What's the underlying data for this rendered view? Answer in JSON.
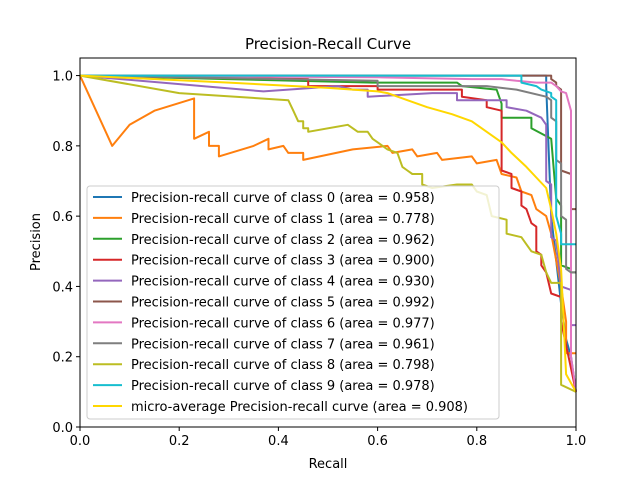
{
  "chart_data": {
    "type": "line",
    "title": "Precision-Recall Curve",
    "xlabel": "Recall",
    "ylabel": "Precision",
    "xlim": [
      0.0,
      1.0
    ],
    "ylim": [
      0.0,
      1.05
    ],
    "xticks": [
      "0.0",
      "0.2",
      "0.4",
      "0.6",
      "0.8",
      "1.0"
    ],
    "yticks": [
      "0.0",
      "0.2",
      "0.4",
      "0.6",
      "0.8",
      "1.0"
    ],
    "grid": false,
    "legend_position": "lower-left",
    "series": [
      {
        "name": "Precision-recall curve of class 0 (area = 0.958)",
        "color": "#1f77b4",
        "points": [
          [
            0,
            1.0
          ],
          [
            0.94,
            1.0
          ],
          [
            0.94,
            0.97
          ],
          [
            0.95,
            0.6
          ],
          [
            0.97,
            0.35
          ],
          [
            0.98,
            0.25
          ],
          [
            0.99,
            0.2
          ],
          [
            1.0,
            0.1
          ]
        ]
      },
      {
        "name": "Precision-recall curve of class 1 (area = 0.778)",
        "color": "#ff7f0e",
        "points": [
          [
            0,
            1.0
          ],
          [
            0.065,
            0.8
          ],
          [
            0.1,
            0.86
          ],
          [
            0.15,
            0.9
          ],
          [
            0.23,
            0.935
          ],
          [
            0.23,
            0.82
          ],
          [
            0.26,
            0.84
          ],
          [
            0.26,
            0.8
          ],
          [
            0.28,
            0.8
          ],
          [
            0.28,
            0.77
          ],
          [
            0.35,
            0.8
          ],
          [
            0.38,
            0.82
          ],
          [
            0.38,
            0.79
          ],
          [
            0.41,
            0.8
          ],
          [
            0.42,
            0.78
          ],
          [
            0.45,
            0.78
          ],
          [
            0.45,
            0.76
          ],
          [
            0.55,
            0.79
          ],
          [
            0.62,
            0.8
          ],
          [
            0.63,
            0.78
          ],
          [
            0.67,
            0.79
          ],
          [
            0.68,
            0.77
          ],
          [
            0.72,
            0.78
          ],
          [
            0.73,
            0.76
          ],
          [
            0.79,
            0.77
          ],
          [
            0.8,
            0.75
          ],
          [
            0.84,
            0.76
          ],
          [
            0.85,
            0.72
          ],
          [
            0.88,
            0.71
          ],
          [
            0.89,
            0.67
          ],
          [
            0.91,
            0.66
          ],
          [
            0.92,
            0.62
          ],
          [
            0.94,
            0.6
          ],
          [
            0.95,
            0.55
          ],
          [
            0.97,
            0.4
          ],
          [
            0.98,
            0.3
          ],
          [
            0.98,
            0.21
          ],
          [
            1.0,
            0.21
          ]
        ]
      },
      {
        "name": "Precision-recall curve of class 2 (area = 0.962)",
        "color": "#2ca02c",
        "points": [
          [
            0,
            1.0
          ],
          [
            0.59,
            0.98
          ],
          [
            0.76,
            0.98
          ],
          [
            0.77,
            0.97
          ],
          [
            0.84,
            0.96
          ],
          [
            0.85,
            0.92
          ],
          [
            0.85,
            0.88
          ],
          [
            0.91,
            0.88
          ],
          [
            0.91,
            0.85
          ],
          [
            0.95,
            0.82
          ],
          [
            0.96,
            0.65
          ],
          [
            0.97,
            0.63
          ],
          [
            0.97,
            0.46
          ],
          [
            0.99,
            0.45
          ],
          [
            0.99,
            0.44
          ],
          [
            1.0,
            0.44
          ]
        ]
      },
      {
        "name": "Precision-recall curve of class 3 (area = 0.900)",
        "color": "#d62728",
        "points": [
          [
            0,
            1.0
          ],
          [
            0.46,
            0.99
          ],
          [
            0.46,
            0.97
          ],
          [
            0.6,
            0.97
          ],
          [
            0.6,
            0.96
          ],
          [
            0.77,
            0.96
          ],
          [
            0.77,
            0.94
          ],
          [
            0.82,
            0.93
          ],
          [
            0.82,
            0.91
          ],
          [
            0.85,
            0.9
          ],
          [
            0.85,
            0.73
          ],
          [
            0.87,
            0.72
          ],
          [
            0.87,
            0.68
          ],
          [
            0.89,
            0.67
          ],
          [
            0.89,
            0.63
          ],
          [
            0.9,
            0.62
          ],
          [
            0.91,
            0.58
          ],
          [
            0.92,
            0.57
          ],
          [
            0.92,
            0.5
          ],
          [
            0.93,
            0.49
          ],
          [
            0.93,
            0.46
          ],
          [
            0.94,
            0.44
          ],
          [
            0.95,
            0.38
          ],
          [
            0.97,
            0.37
          ],
          [
            0.97,
            0.3
          ],
          [
            1.0,
            0.1
          ]
        ]
      },
      {
        "name": "Precision-recall curve of class 4 (area = 0.930)",
        "color": "#9467bd",
        "points": [
          [
            0,
            1.0
          ],
          [
            0.37,
            0.955
          ],
          [
            0.52,
            0.97
          ],
          [
            0.55,
            0.96
          ],
          [
            0.58,
            0.96
          ],
          [
            0.58,
            0.94
          ],
          [
            0.71,
            0.95
          ],
          [
            0.76,
            0.95
          ],
          [
            0.76,
            0.93
          ],
          [
            0.86,
            0.93
          ],
          [
            0.86,
            0.91
          ],
          [
            0.9,
            0.9
          ],
          [
            0.93,
            0.88
          ],
          [
            0.94,
            0.86
          ],
          [
            0.94,
            0.7
          ],
          [
            0.95,
            0.69
          ],
          [
            0.95,
            0.54
          ],
          [
            0.96,
            0.53
          ],
          [
            0.97,
            0.4
          ],
          [
            0.99,
            0.39
          ],
          [
            0.99,
            0.29
          ],
          [
            1.0,
            0.29
          ]
        ]
      },
      {
        "name": "Precision-recall curve of class 5 (area = 0.992)",
        "color": "#8c564b",
        "points": [
          [
            0,
            1.0
          ],
          [
            0.93,
            1.0
          ],
          [
            0.95,
            1.0
          ],
          [
            0.95,
            0.99
          ],
          [
            0.96,
            0.98
          ],
          [
            0.96,
            0.97
          ],
          [
            0.97,
            0.96
          ],
          [
            0.97,
            0.73
          ],
          [
            0.99,
            0.72
          ],
          [
            0.99,
            0.62
          ],
          [
            1.0,
            0.62
          ]
        ]
      },
      {
        "name": "Precision-recall curve of class 6 (area = 0.977)",
        "color": "#e377c2",
        "points": [
          [
            0,
            1.0
          ],
          [
            0.6,
            0.995
          ],
          [
            0.79,
            0.99
          ],
          [
            0.85,
            0.99
          ],
          [
            0.88,
            0.985
          ],
          [
            0.92,
            0.98
          ],
          [
            0.95,
            0.98
          ],
          [
            0.96,
            0.97
          ],
          [
            0.97,
            0.955
          ],
          [
            0.98,
            0.95
          ],
          [
            0.99,
            0.9
          ],
          [
            0.99,
            0.2
          ],
          [
            1.0,
            0.1
          ]
        ]
      },
      {
        "name": "Precision-recall curve of class 7 (area = 0.961)",
        "color": "#7f7f7f",
        "points": [
          [
            0,
            1.0
          ],
          [
            0.6,
            0.985
          ],
          [
            0.6,
            0.97
          ],
          [
            0.71,
            0.97
          ],
          [
            0.82,
            0.97
          ],
          [
            0.88,
            0.96
          ],
          [
            0.94,
            0.94
          ],
          [
            0.95,
            0.93
          ],
          [
            0.95,
            0.88
          ],
          [
            0.96,
            0.87
          ],
          [
            0.96,
            0.76
          ],
          [
            0.97,
            0.75
          ],
          [
            0.97,
            0.6
          ],
          [
            0.98,
            0.59
          ],
          [
            0.98,
            0.45
          ],
          [
            0.99,
            0.44
          ],
          [
            1.0,
            0.44
          ]
        ]
      },
      {
        "name": "Precision-recall curve of class 8 (area = 0.798)",
        "color": "#bcbd22",
        "points": [
          [
            0,
            1.0
          ],
          [
            0.2,
            0.95
          ],
          [
            0.42,
            0.93
          ],
          [
            0.43,
            0.9
          ],
          [
            0.44,
            0.87
          ],
          [
            0.45,
            0.87
          ],
          [
            0.45,
            0.85
          ],
          [
            0.46,
            0.85
          ],
          [
            0.46,
            0.84
          ],
          [
            0.54,
            0.86
          ],
          [
            0.56,
            0.84
          ],
          [
            0.58,
            0.84
          ],
          [
            0.59,
            0.82
          ],
          [
            0.6,
            0.81
          ],
          [
            0.62,
            0.79
          ],
          [
            0.64,
            0.78
          ],
          [
            0.65,
            0.74
          ],
          [
            0.66,
            0.73
          ],
          [
            0.67,
            0.72
          ],
          [
            0.69,
            0.72
          ],
          [
            0.69,
            0.69
          ],
          [
            0.71,
            0.68
          ],
          [
            0.76,
            0.69
          ],
          [
            0.79,
            0.69
          ],
          [
            0.8,
            0.67
          ],
          [
            0.82,
            0.66
          ],
          [
            0.83,
            0.6
          ],
          [
            0.86,
            0.59
          ],
          [
            0.86,
            0.55
          ],
          [
            0.89,
            0.54
          ],
          [
            0.9,
            0.52
          ],
          [
            0.91,
            0.5
          ],
          [
            0.93,
            0.49
          ],
          [
            0.94,
            0.44
          ],
          [
            0.95,
            0.41
          ],
          [
            0.97,
            0.41
          ],
          [
            0.97,
            0.12
          ],
          [
            1.0,
            0.1
          ]
        ]
      },
      {
        "name": "Precision-recall curve of class 9 (area = 0.978)",
        "color": "#17becf",
        "points": [
          [
            0,
            1.0
          ],
          [
            0.89,
            1.0
          ],
          [
            0.89,
            0.98
          ],
          [
            0.92,
            0.97
          ],
          [
            0.93,
            0.96
          ],
          [
            0.95,
            0.95
          ],
          [
            0.95,
            0.94
          ],
          [
            0.96,
            0.93
          ],
          [
            0.96,
            0.6
          ],
          [
            0.97,
            0.55
          ],
          [
            0.97,
            0.52
          ],
          [
            1.0,
            0.52
          ]
        ]
      },
      {
        "name": "micro-average Precision-recall curve (area = 0.908)",
        "color": "#ffd700",
        "points": [
          [
            0,
            1.0
          ],
          [
            0.3,
            0.98
          ],
          [
            0.5,
            0.965
          ],
          [
            0.55,
            0.96
          ],
          [
            0.6,
            0.955
          ],
          [
            0.62,
            0.95
          ],
          [
            0.66,
            0.93
          ],
          [
            0.7,
            0.91
          ],
          [
            0.75,
            0.89
          ],
          [
            0.79,
            0.87
          ],
          [
            0.82,
            0.84
          ],
          [
            0.85,
            0.81
          ],
          [
            0.87,
            0.78
          ],
          [
            0.9,
            0.74
          ],
          [
            0.92,
            0.71
          ],
          [
            0.94,
            0.68
          ],
          [
            0.95,
            0.62
          ],
          [
            0.96,
            0.55
          ],
          [
            0.97,
            0.45
          ],
          [
            0.975,
            0.3
          ],
          [
            0.98,
            0.15
          ],
          [
            1.0,
            0.1
          ]
        ]
      }
    ]
  }
}
